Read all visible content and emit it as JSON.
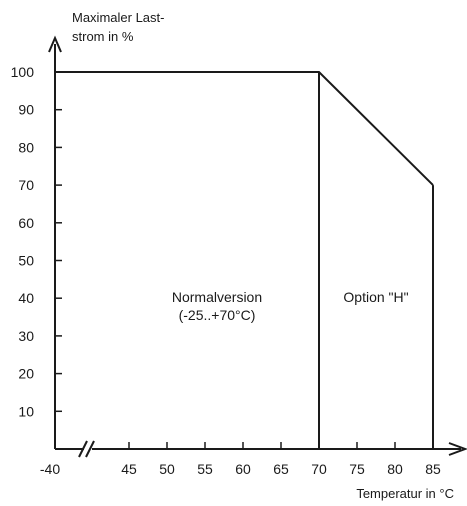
{
  "chart_data": {
    "type": "line",
    "title": "",
    "ylabel": [
      "Maximaler Last-",
      "strom in %"
    ],
    "xlabel": "Temperatur in °C",
    "y_ticks": [
      10,
      20,
      30,
      40,
      50,
      60,
      70,
      80,
      90,
      100
    ],
    "x_ticks": [
      -40,
      45,
      50,
      55,
      60,
      65,
      70,
      75,
      80,
      85
    ],
    "x_axis_break": "between -40 and 45",
    "ylim": [
      0,
      100
    ],
    "xlim": [
      -40,
      85
    ],
    "grid": false,
    "series": [
      {
        "x": [
          -40,
          70,
          85
        ],
        "y": [
          100,
          100,
          70
        ]
      }
    ],
    "regions": [
      {
        "label_lines": [
          "Normalversion",
          "(-25..+70°C)"
        ],
        "x_from": -40,
        "x_to": 70
      },
      {
        "label_lines": [
          "Option \"H\""
        ],
        "x_from": 70,
        "x_to": 85
      }
    ],
    "color": "#1a1a1a"
  }
}
